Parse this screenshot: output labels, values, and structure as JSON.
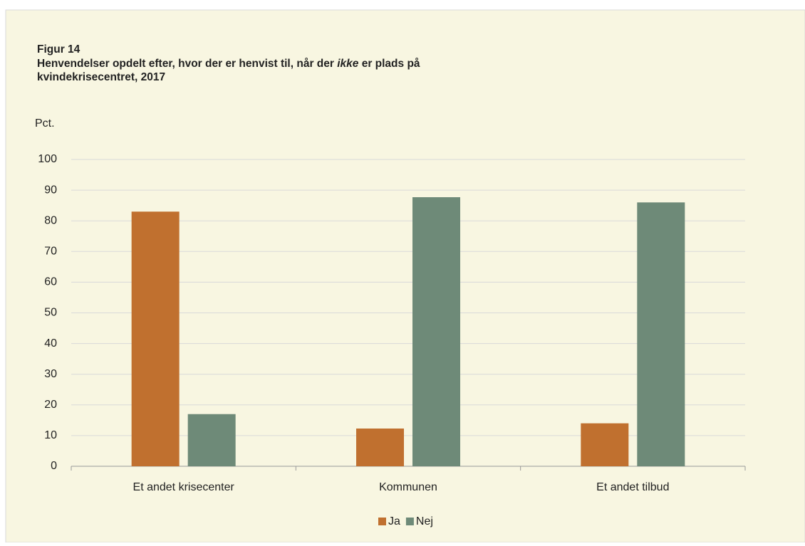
{
  "chart_data": {
    "type": "bar",
    "figure_label": "Figur 14",
    "title": [
      "Henvendelser opdelt efter, hvor der er henvist til, når der",
      "ikke",
      "er plads på",
      "kvindekrisecentret, 2017"
    ],
    "y_label": "Pct.",
    "categories": [
      "Et andet krisecenter",
      "Kommunen",
      "Et andet tilbud"
    ],
    "series": [
      {
        "name": "Ja",
        "color": "#c0702f",
        "values": [
          83,
          12.3,
          14
        ]
      },
      {
        "name": "Nej",
        "color": "#6e8a78",
        "values": [
          17,
          87.7,
          86
        ]
      }
    ],
    "ylim": [
      0,
      100
    ],
    "yticks": [
      0,
      10,
      20,
      30,
      40,
      50,
      60,
      70,
      80,
      90,
      100
    ],
    "grid": true,
    "legend": "bottom"
  }
}
